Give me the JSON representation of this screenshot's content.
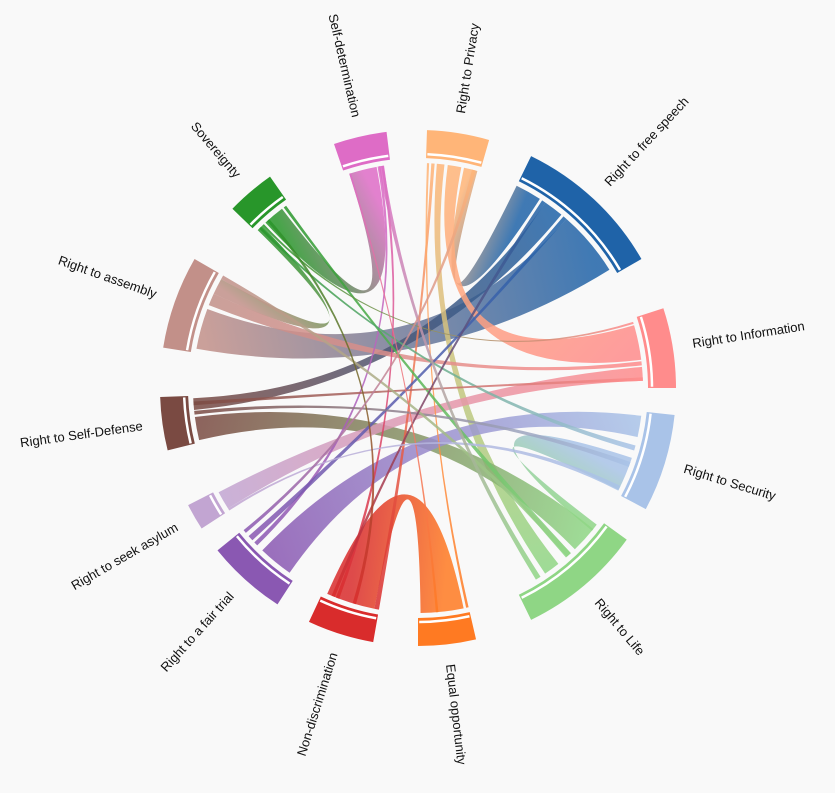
{
  "chart_data": {
    "type": "chord",
    "groups": [
      {
        "name": "Right to free speech",
        "color": "#1f63a8",
        "start_deg": 26,
        "end_deg": 60
      },
      {
        "name": "Right to Information",
        "color": "#ff8c8c",
        "start_deg": 72,
        "end_deg": 90
      },
      {
        "name": "Right to Security",
        "color": "#a9c3e8",
        "start_deg": 96,
        "end_deg": 118
      },
      {
        "name": "Right to Life",
        "color": "#8fd685",
        "start_deg": 126,
        "end_deg": 154
      },
      {
        "name": "Equal opportunity",
        "color": "#ff7a22",
        "start_deg": 167,
        "end_deg": 180
      },
      {
        "name": "Non-discrimination",
        "color": "#d92c2c",
        "start_deg": 190,
        "end_deg": 205
      },
      {
        "name": "Right to a fair trial",
        "color": "#8a58b2",
        "start_deg": 213,
        "end_deg": 231
      },
      {
        "name": "Right to seek asylum",
        "color": "#c2a5d2",
        "start_deg": 237,
        "end_deg": 243
      },
      {
        "name": "Right to Self-Defense",
        "color": "#7a4a42",
        "start_deg": 256,
        "end_deg": 268
      },
      {
        "name": "Right to assembly",
        "color": "#c29089",
        "start_deg": 279,
        "end_deg": 300
      },
      {
        "name": "Sovereignty",
        "color": "#28962a",
        "start_deg": 314,
        "end_deg": 325
      },
      {
        "name": "Self-determination",
        "color": "#de6cc6",
        "start_deg": 341,
        "end_deg": 353
      },
      {
        "name": "Right to Privacy",
        "color": "#ffb578",
        "start_deg": 2,
        "end_deg": 16
      }
    ],
    "ribbons": [
      {
        "source": 0,
        "target": 9,
        "s": [
          0.45,
          0.95
        ],
        "t": [
          0.05,
          0.55
        ],
        "color": "#3f6fa2"
      },
      {
        "source": 0,
        "target": 8,
        "s": [
          0.25,
          0.4
        ],
        "t": [
          0.7,
          0.95
        ],
        "color": "#3b5fb7"
      },
      {
        "source": 0,
        "target": 12,
        "s": [
          0.0,
          0.2
        ],
        "t": [
          0.7,
          0.95
        ],
        "color": "#ffb578"
      },
      {
        "source": 12,
        "target": 3,
        "s": [
          0.2,
          0.34
        ],
        "t": [
          0.55,
          0.7
        ],
        "color": "#c8cf82"
      },
      {
        "source": 12,
        "target": 1,
        "s": [
          0.4,
          0.65
        ],
        "t": [
          0.1,
          0.6
        ],
        "color": "#ffa888"
      },
      {
        "source": 8,
        "target": 3,
        "s": [
          0.05,
          0.55
        ],
        "t": [
          0.1,
          0.35
        ],
        "color": "#8a8a5a"
      },
      {
        "source": 2,
        "target": 3,
        "s": [
          0.55,
          0.95
        ],
        "t": [
          0.05,
          0.12
        ],
        "color": "#99c7b7"
      },
      {
        "source": 4,
        "target": 5,
        "s": [
          0.1,
          0.95
        ],
        "t": [
          0.08,
          0.92
        ],
        "color": "#ff5a28"
      },
      {
        "source": 11,
        "target": 10,
        "s": [
          0.1,
          0.7
        ],
        "t": [
          0.3,
          0.8
        ],
        "color": "#de6cc6"
      },
      {
        "source": 10,
        "target": 9,
        "s": [
          0.05,
          0.2
        ],
        "t": [
          0.75,
          0.95
        ],
        "color": "#28962a"
      },
      {
        "source": 6,
        "target": 2,
        "s": [
          0.1,
          0.6
        ],
        "t": [
          0.05,
          0.3
        ],
        "color": "#8a88c0"
      },
      {
        "source": 7,
        "target": 1,
        "s": [
          0.1,
          0.9
        ],
        "t": [
          0.7,
          0.9
        ],
        "color": "#c2a5d2"
      },
      {
        "source": 9,
        "target": 1,
        "s": [
          0.6,
          0.75
        ],
        "t": [
          0.62,
          0.68
        ],
        "color": "#c29089"
      },
      {
        "source": 5,
        "target": 12,
        "s": [
          0.0,
          0.08
        ],
        "t": [
          0.1,
          0.16
        ],
        "color": "#d92c2c"
      },
      {
        "source": 5,
        "target": 11,
        "s": [
          0.7,
          0.76
        ],
        "t": [
          0.8,
          0.86
        ],
        "color": "#d24470"
      },
      {
        "source": 4,
        "target": 12,
        "s": [
          0.0,
          0.05
        ],
        "t": [
          0.02,
          0.06
        ],
        "color": "#ff7a22"
      },
      {
        "source": 6,
        "target": 11,
        "s": [
          0.7,
          0.76
        ],
        "t": [
          0.72,
          0.78
        ],
        "color": "#8a58b2"
      },
      {
        "source": 6,
        "target": 0,
        "s": [
          0.8,
          0.88
        ],
        "t": [
          0.42,
          0.45
        ],
        "color": "#6a60b0"
      },
      {
        "source": 3,
        "target": 10,
        "s": [
          0.4,
          0.46
        ],
        "t": [
          0.85,
          0.92
        ],
        "color": "#5ca85a"
      },
      {
        "source": 2,
        "target": 10,
        "s": [
          0.4,
          0.46
        ],
        "t": [
          0.1,
          0.16
        ],
        "color": "#6ab07a"
      },
      {
        "source": 1,
        "target": 10,
        "s": [
          0.05,
          0.08
        ],
        "t": [
          0.2,
          0.25
        ],
        "color": "#ff8c8c"
      },
      {
        "source": 8,
        "target": 1,
        "s": [
          0.8,
          0.88
        ],
        "t": [
          0.85,
          0.9
        ],
        "color": "#9a6a62"
      },
      {
        "source": 8,
        "target": 2,
        "s": [
          0.6,
          0.68
        ],
        "t": [
          0.6,
          0.66
        ],
        "color": "#8a7a92"
      },
      {
        "source": 9,
        "target": 3,
        "s": [
          0.95,
          1.0
        ],
        "t": [
          0.4,
          0.45
        ],
        "color": "#c29089"
      },
      {
        "source": 5,
        "target": 0,
        "s": [
          0.78,
          0.84
        ],
        "t": [
          0.22,
          0.25
        ],
        "color": "#c2386a"
      },
      {
        "source": 4,
        "target": 11,
        "s": [
          0.6,
          0.65
        ],
        "t": [
          0.1,
          0.14
        ],
        "color": "#ff6a8a"
      },
      {
        "source": 7,
        "target": 2,
        "s": [
          0.0,
          0.1
        ],
        "t": [
          0.9,
          0.96
        ],
        "color": "#b0a5d8"
      },
      {
        "source": 11,
        "target": 3,
        "s": [
          0.75,
          0.85
        ],
        "t": [
          0.75,
          0.8
        ],
        "color": "#c88ab6"
      },
      {
        "source": 10,
        "target": 5,
        "s": [
          0.35,
          0.42
        ],
        "t": [
          0.4,
          0.46
        ],
        "color": "#6a8a3a"
      },
      {
        "source": 12,
        "target": 6,
        "s": [
          0.85,
          0.92
        ],
        "t": [
          0.94,
          0.99
        ],
        "color": "#ffb578"
      }
    ]
  }
}
